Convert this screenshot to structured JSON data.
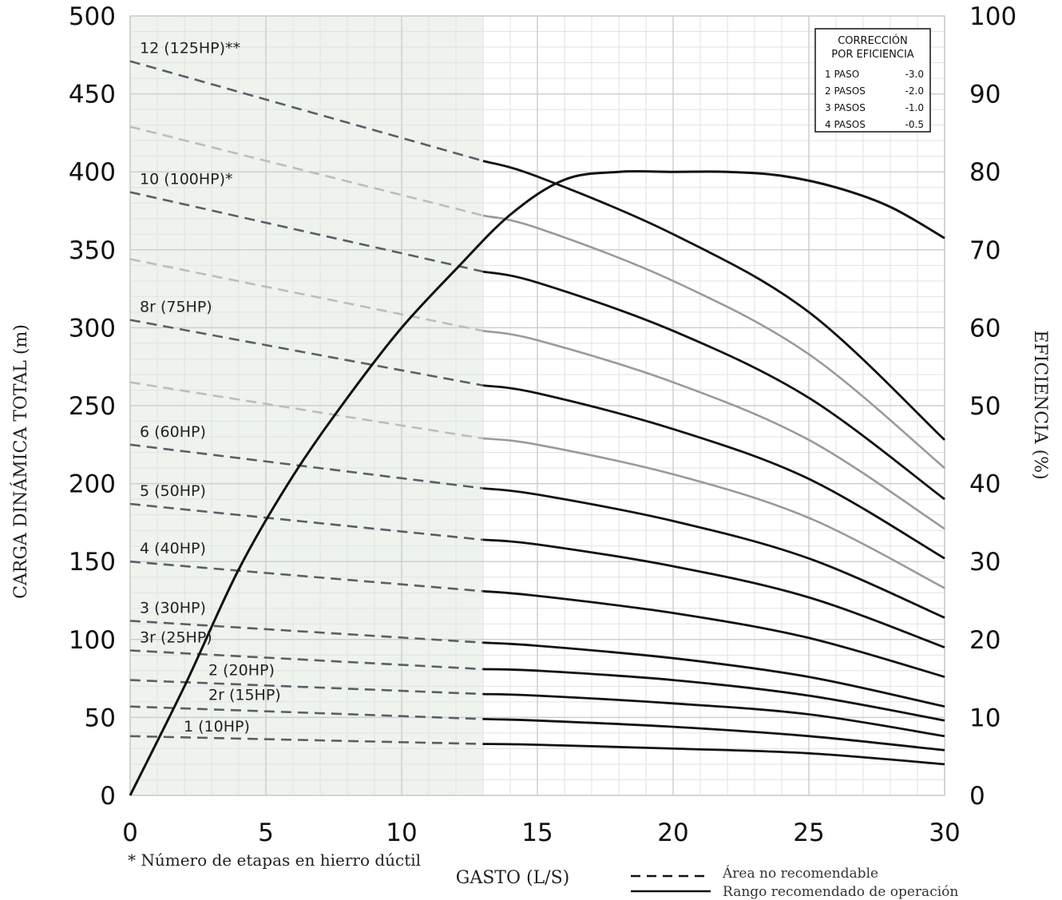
{
  "chart_data": {
    "type": "line",
    "title": "",
    "xlabel": "GASTO (L/S)",
    "ylabel": "CARGA DINÁMICA TOTAL (m)",
    "y2label": "EFICIENCIA (%)",
    "xlim": [
      0,
      30
    ],
    "ylim": [
      0,
      500
    ],
    "y2lim": [
      0,
      100
    ],
    "xticks": [
      "0",
      "5",
      "10",
      "15",
      "20",
      "25",
      "30"
    ],
    "yticks": [
      "0",
      "50",
      "100",
      "150",
      "200",
      "250",
      "300",
      "350",
      "400",
      "450",
      "500"
    ],
    "y2ticks": [
      "0",
      "10",
      "20",
      "30",
      "40",
      "50",
      "60",
      "70",
      "80",
      "90",
      "100"
    ],
    "grid": true,
    "not_recommended_until_x": 13,
    "x": [
      0,
      13,
      15,
      20,
      25,
      30
    ],
    "series": [
      {
        "name": "1 (10HP)",
        "color": "#111111",
        "labeled": true,
        "values": [
          38,
          33,
          32.5,
          30,
          27,
          20
        ]
      },
      {
        "name": "2r (15HP)",
        "color": "#111111",
        "labeled": true,
        "values": [
          57,
          49,
          48,
          44,
          38,
          29
        ]
      },
      {
        "name": "2 (20HP)",
        "color": "#111111",
        "labeled": true,
        "values": [
          74,
          65,
          64,
          59,
          52,
          38
        ]
      },
      {
        "name": "3r (25HP)",
        "color": "#111111",
        "labeled": true,
        "values": [
          93,
          81,
          80,
          74,
          64,
          48
        ]
      },
      {
        "name": "3 (30HP)",
        "color": "#111111",
        "labeled": true,
        "values": [
          112,
          98,
          96,
          88,
          76,
          57
        ]
      },
      {
        "name": "4 (40HP)",
        "color": "#111111",
        "labeled": true,
        "values": [
          150,
          131,
          128,
          117,
          101,
          76
        ]
      },
      {
        "name": "5 (50HP)",
        "color": "#111111",
        "labeled": true,
        "values": [
          187,
          164,
          161,
          147,
          127,
          95
        ]
      },
      {
        "name": "6 (60HP)",
        "color": "#111111",
        "labeled": true,
        "values": [
          225,
          197,
          193,
          176,
          152,
          114
        ]
      },
      {
        "name": "",
        "color": "#9a9a9a",
        "labeled": false,
        "values": [
          265,
          229,
          225,
          206,
          178,
          133
        ]
      },
      {
        "name": "8r (75HP)",
        "color": "#111111",
        "labeled": true,
        "values": [
          305,
          263,
          258,
          235,
          203,
          152
        ]
      },
      {
        "name": "",
        "color": "#9a9a9a",
        "labeled": false,
        "values": [
          344,
          298,
          292,
          265,
          228,
          171
        ]
      },
      {
        "name": "10 (100HP)*",
        "color": "#111111",
        "labeled": true,
        "values": [
          387,
          336,
          329,
          298,
          255,
          190
        ]
      },
      {
        "name": "",
        "color": "#9a9a9a",
        "labeled": false,
        "values": [
          429,
          372,
          364,
          330,
          283,
          210
        ]
      },
      {
        "name": "12 (125HP)**",
        "color": "#111111",
        "labeled": true,
        "values": [
          471,
          407,
          397,
          360,
          310,
          228
        ]
      }
    ],
    "efficiency": {
      "x": [
        0,
        2,
        4,
        6,
        8,
        10,
        12,
        14,
        16,
        18,
        20,
        22,
        24,
        26,
        28,
        30
      ],
      "values": [
        0,
        14,
        29,
        41,
        51,
        60,
        67.5,
        74.5,
        79,
        80,
        80,
        80,
        79.5,
        78,
        75.5,
        71.5
      ]
    },
    "correction_box": {
      "title_lines": [
        "CORRECCIÓN",
        "POR EFICIENCIA"
      ],
      "rows": [
        {
          "label": "1 PASO",
          "value": "-3.0"
        },
        {
          "label": "2 PASOS",
          "value": "-2.0"
        },
        {
          "label": "3 PASOS",
          "value": "-1.0"
        },
        {
          "label": "4 PASOS",
          "value": "-0.5"
        }
      ]
    },
    "footnote": "* Número de etapas en hierro dúctil",
    "legend": [
      {
        "style": "dashed",
        "label": "Área no recomendable"
      },
      {
        "style": "solid",
        "label": "Rango recomendado de operación"
      }
    ]
  }
}
